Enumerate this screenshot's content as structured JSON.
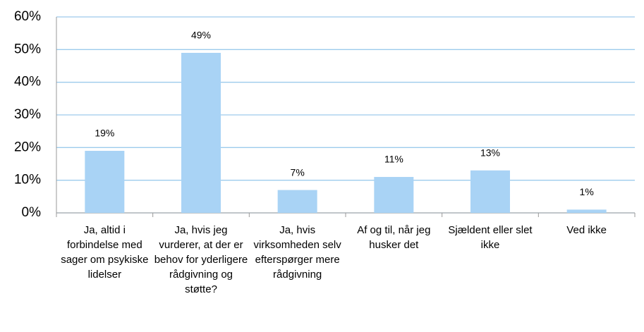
{
  "chart_data": {
    "type": "bar",
    "categories": [
      "Ja, altid i forbindelse med sager om psykiske lidelser",
      "Ja, hvis jeg vurderer, at der er behov for yderligere rådgivning og støtte?",
      "Ja, hvis virksomheden selv efterspørger mere rådgivning",
      "Af og til, når jeg husker det",
      "Sjældent eller slet ikke",
      "Ved ikke"
    ],
    "values": [
      19,
      49,
      7,
      11,
      13,
      1
    ],
    "value_labels": [
      "19%",
      "49%",
      "7%",
      "11%",
      "13%",
      "1%"
    ],
    "color": "#a9d3f5",
    "ylim": [
      0,
      60
    ],
    "yticks": [
      {
        "value": 0,
        "label": "0%"
      },
      {
        "value": 10,
        "label": "10%"
      },
      {
        "value": 20,
        "label": "20%"
      },
      {
        "value": 30,
        "label": "30%"
      },
      {
        "value": 40,
        "label": "40%"
      },
      {
        "value": 50,
        "label": "50%"
      },
      {
        "value": 60,
        "label": "60%"
      }
    ],
    "grid": true
  }
}
